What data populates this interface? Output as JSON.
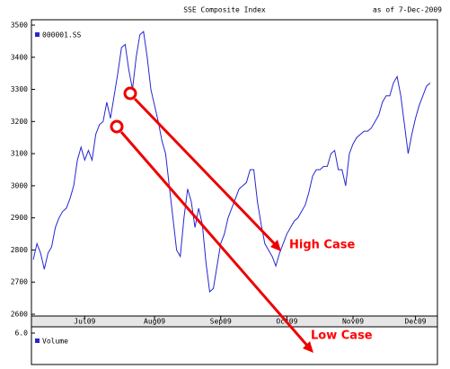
{
  "chart_data": {
    "type": "line",
    "title": "SSE Composite Index",
    "date_label": "as of  7-Dec-2009",
    "categories": [
      null,
      null,
      null,
      null,
      null,
      null,
      null,
      null,
      null,
      null,
      null,
      null,
      null,
      null,
      "Jul09",
      null,
      null,
      null,
      null,
      null,
      null,
      null,
      null,
      null,
      null,
      null,
      null,
      null,
      null,
      null,
      null,
      null,
      null,
      "Aug09",
      null,
      null,
      null,
      null,
      null,
      null,
      null,
      null,
      null,
      null,
      null,
      null,
      null,
      null,
      null,
      null,
      null,
      "Sep09",
      null,
      null,
      null,
      null,
      null,
      null,
      null,
      null,
      null,
      null,
      null,
      null,
      null,
      null,
      null,
      null,
      null,
      "Oct09",
      null,
      null,
      null,
      null,
      null,
      null,
      null,
      null,
      null,
      null,
      null,
      null,
      null,
      null,
      null,
      null,
      null,
      "Nov09",
      null,
      null,
      null,
      null,
      null,
      null,
      null,
      null,
      null,
      null,
      null,
      null,
      null,
      null,
      null,
      null,
      "Dec09",
      null,
      null,
      null,
      null
    ],
    "series": [
      {
        "name": "000001.SS",
        "color": "#2626d0",
        "values": [
          2770,
          2820,
          2790,
          2740,
          2790,
          2810,
          2870,
          2900,
          2920,
          2930,
          2960,
          3000,
          3080,
          3120,
          3080,
          3110,
          3080,
          3160,
          3190,
          3200,
          3260,
          3210,
          3280,
          3350,
          3430,
          3440,
          3360,
          3300,
          3400,
          3470,
          3480,
          3400,
          3300,
          3250,
          3200,
          3140,
          3100,
          3000,
          2900,
          2800,
          2780,
          2900,
          2990,
          2950,
          2870,
          2930,
          2880,
          2760,
          2670,
          2680,
          2750,
          2820,
          2850,
          2900,
          2930,
          2960,
          2990,
          3000,
          3010,
          3050,
          3050,
          2950,
          2880,
          2820,
          2800,
          2780,
          2750,
          2790,
          2820,
          2850,
          2870,
          2890,
          2900,
          2920,
          2940,
          2980,
          3030,
          3050,
          3050,
          3060,
          3060,
          3100,
          3110,
          3050,
          3050,
          3000,
          3100,
          3130,
          3150,
          3160,
          3170,
          3170,
          3180,
          3200,
          3220,
          3260,
          3280,
          3280,
          3320,
          3340,
          3280,
          3190,
          3100,
          3160,
          3210,
          3250,
          3280,
          3310,
          3320
        ]
      }
    ],
    "ylim": [
      2600,
      3500
    ],
    "yticks": [
      2600,
      2700,
      2800,
      2900,
      3000,
      3100,
      3200,
      3300,
      3400,
      3500
    ],
    "grid": false,
    "volume": {
      "name": "Volume",
      "color": "#2626d0",
      "yticks": [
        {
          "value": 6,
          "label": "6.0"
        }
      ]
    },
    "annotations": [
      {
        "text": "High Case",
        "color": "#ff0000"
      },
      {
        "text": "Low Case",
        "color": "#ff0000"
      }
    ]
  }
}
